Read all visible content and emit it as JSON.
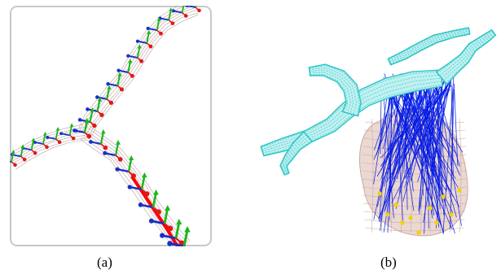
{
  "figure": {
    "panel_a": {
      "caption": "(a)",
      "colors": {
        "frame": "#c8c8c8",
        "mesh": "#a8888a",
        "axis_x": "#e01818",
        "axis_y": "#18b818",
        "axis_z": "#1830c8",
        "centerline": "#ff0000"
      }
    },
    "panel_b": {
      "caption": "(b)",
      "colors": {
        "vessel_mesh": "#2bc4c4",
        "correspondence_lines": "#0018e6",
        "organ_mesh": "#c8aaa4",
        "organ_fill": "#ecd8d2",
        "landmarks": "#f2d200"
      }
    }
  }
}
